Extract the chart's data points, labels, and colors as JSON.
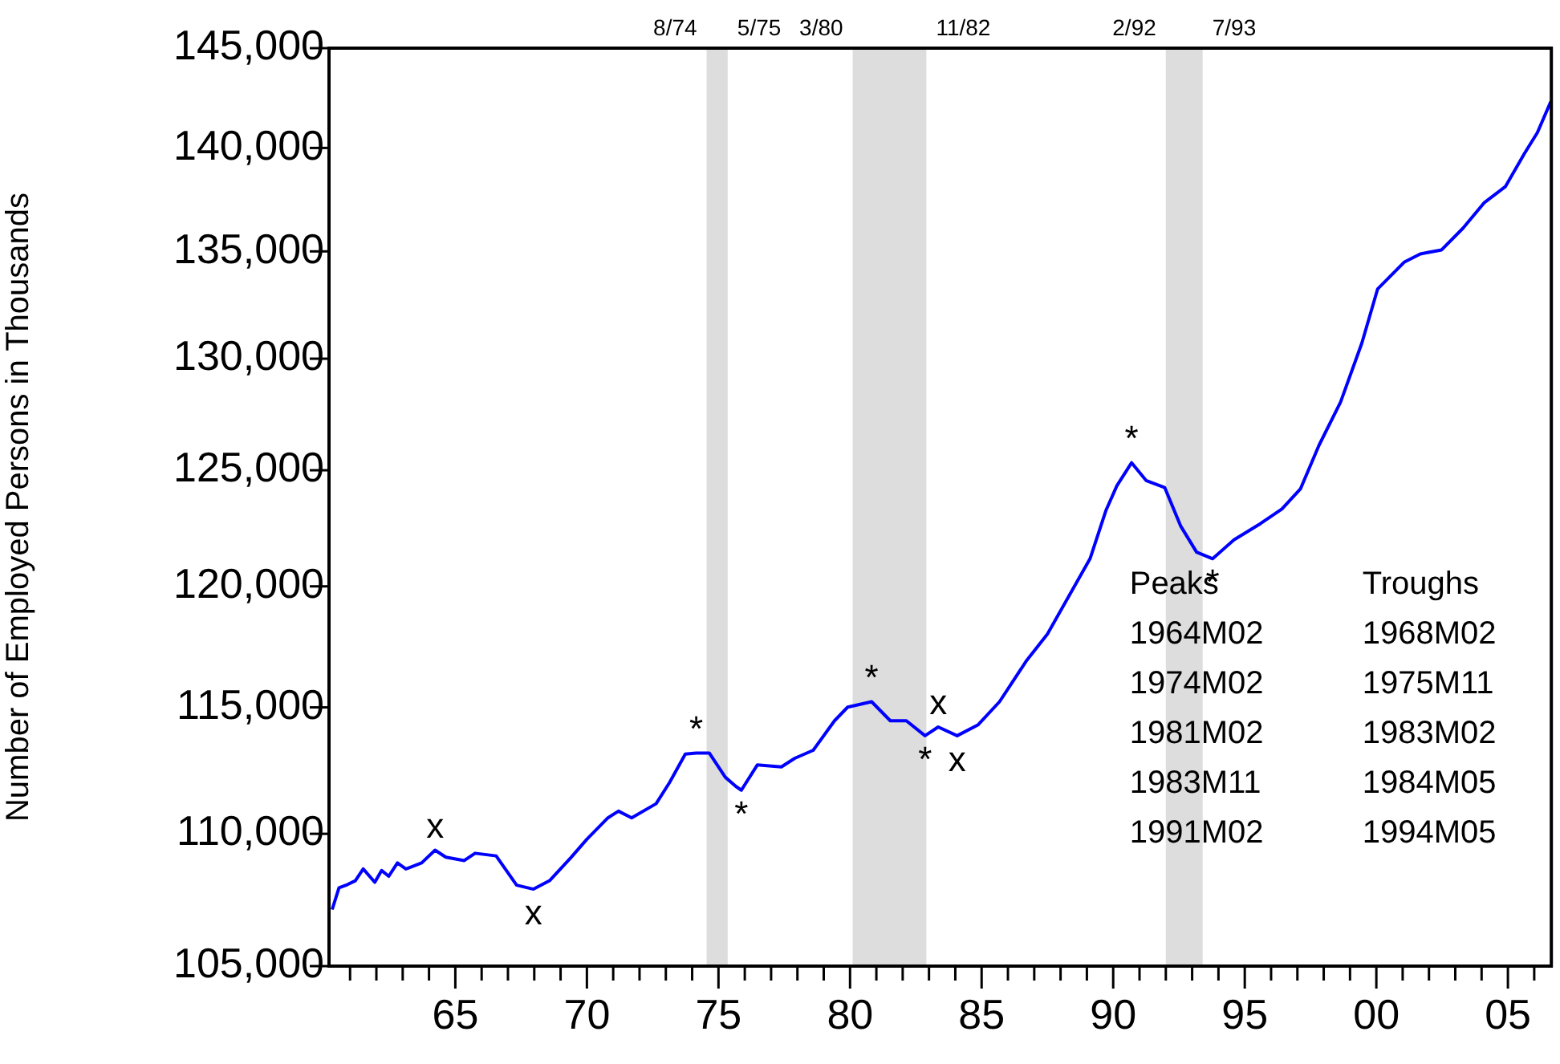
{
  "chart_data": {
    "type": "line",
    "ylabel": "Number of Employed Persons in Thousands",
    "log": "y",
    "grid": false,
    "legend": false,
    "marker": "none",
    "line_style": "solid",
    "xlim": [
      1960.2,
      2006.65
    ],
    "ylim": [
      105000,
      145000
    ],
    "yticks": [
      {
        "value": 105000,
        "label": "105,000"
      },
      {
        "value": 110000,
        "label": "110,000"
      },
      {
        "value": 115000,
        "label": "115,000"
      },
      {
        "value": 120000,
        "label": "120,000"
      },
      {
        "value": 125000,
        "label": "125,000"
      },
      {
        "value": 130000,
        "label": "130,000"
      },
      {
        "value": 135000,
        "label": "135,000"
      },
      {
        "value": 140000,
        "label": "140,000"
      },
      {
        "value": 145000,
        "label": "145,000"
      }
    ],
    "xticks": [
      {
        "value": 1961,
        "label": null
      },
      {
        "value": 1962,
        "label": null
      },
      {
        "value": 1963,
        "label": null
      },
      {
        "value": 1964,
        "label": null
      },
      {
        "value": 1965,
        "label": "65"
      },
      {
        "value": 1966,
        "label": null
      },
      {
        "value": 1967,
        "label": null
      },
      {
        "value": 1968,
        "label": null
      },
      {
        "value": 1969,
        "label": null
      },
      {
        "value": 1970,
        "label": "70"
      },
      {
        "value": 1971,
        "label": null
      },
      {
        "value": 1972,
        "label": null
      },
      {
        "value": 1973,
        "label": null
      },
      {
        "value": 1974,
        "label": null
      },
      {
        "value": 1975,
        "label": "75"
      },
      {
        "value": 1976,
        "label": null
      },
      {
        "value": 1977,
        "label": null
      },
      {
        "value": 1978,
        "label": null
      },
      {
        "value": 1979,
        "label": null
      },
      {
        "value": 1980,
        "label": "80"
      },
      {
        "value": 1981,
        "label": null
      },
      {
        "value": 1982,
        "label": null
      },
      {
        "value": 1983,
        "label": null
      },
      {
        "value": 1984,
        "label": null
      },
      {
        "value": 1985,
        "label": "85"
      },
      {
        "value": 1986,
        "label": null
      },
      {
        "value": 1987,
        "label": null
      },
      {
        "value": 1988,
        "label": null
      },
      {
        "value": 1989,
        "label": null
      },
      {
        "value": 1990,
        "label": "90"
      },
      {
        "value": 1991,
        "label": null
      },
      {
        "value": 1992,
        "label": null
      },
      {
        "value": 1993,
        "label": null
      },
      {
        "value": 1994,
        "label": null
      },
      {
        "value": 1995,
        "label": "95"
      },
      {
        "value": 1996,
        "label": null
      },
      {
        "value": 1997,
        "label": null
      },
      {
        "value": 1998,
        "label": null
      },
      {
        "value": 1999,
        "label": null
      },
      {
        "value": 2000,
        "label": "00"
      },
      {
        "value": 2001,
        "label": null
      },
      {
        "value": 2002,
        "label": null
      },
      {
        "value": 2003,
        "label": null
      },
      {
        "value": 2004,
        "label": null
      },
      {
        "value": 2005,
        "label": "05"
      },
      {
        "value": 2006,
        "label": null
      }
    ],
    "bands": [
      {
        "axis": "x",
        "from": 1974.55,
        "to": 1975.35,
        "color": "#dddddd"
      },
      {
        "axis": "x",
        "from": 1980.1,
        "to": 1982.9,
        "color": "#dddddd"
      },
      {
        "axis": "x",
        "from": 1992.0,
        "to": 1993.4,
        "color": "#dddddd"
      }
    ],
    "series": [
      {
        "color": "#0000ff",
        "x": [
          1960.32,
          1960.58,
          1960.89,
          1961.2,
          1961.5,
          1961.94,
          1962.2,
          1962.47,
          1962.8,
          1963.12,
          1963.72,
          1964.23,
          1964.64,
          1965.34,
          1965.75,
          1966.55,
          1967.33,
          1967.97,
          1968.58,
          1969.39,
          1970.0,
          1970.8,
          1971.2,
          1971.7,
          1972.63,
          1973.14,
          1973.74,
          1974.15,
          1974.65,
          1975.26,
          1975.66,
          1975.87,
          1976.48,
          1977.39,
          1977.9,
          1978.6,
          1979.41,
          1979.91,
          1980.82,
          1981.53,
          1982.14,
          1982.85,
          1983.35,
          1984.07,
          1984.87,
          1985.68,
          1986.69,
          1987.5,
          1988.31,
          1989.12,
          1989.73,
          1990.14,
          1990.7,
          1991.25,
          1991.96,
          1992.57,
          1993.17,
          1993.78,
          1994.59,
          1995.6,
          1996.41,
          1997.12,
          1997.82,
          1998.64,
          1999.45,
          2000.05,
          2001.07,
          2001.67,
          2002.48,
          2003.29,
          2004.1,
          2004.91,
          2005.62,
          2006.12,
          2006.63
        ],
        "values": [
          107110,
          107930,
          108050,
          108200,
          108650,
          108140,
          108590,
          108370,
          108880,
          108650,
          108880,
          109370,
          109100,
          108970,
          109250,
          109150,
          108030,
          107880,
          108200,
          109080,
          109790,
          110620,
          110880,
          110620,
          111170,
          112000,
          113130,
          113170,
          113170,
          112210,
          111850,
          111700,
          112700,
          112620,
          112960,
          113280,
          114460,
          115010,
          115230,
          114460,
          114460,
          113860,
          114210,
          113860,
          114300,
          115230,
          116880,
          118000,
          119580,
          121170,
          123260,
          124320,
          125330,
          124550,
          124240,
          122560,
          121450,
          121170,
          121980,
          122680,
          123310,
          124190,
          126100,
          128030,
          130720,
          133230,
          134500,
          134880,
          135070,
          136100,
          137330,
          138120,
          139710,
          140760,
          142300
        ]
      }
    ],
    "annotations": [
      {
        "text": "8/74",
        "x": 1974.55,
        "y": 145000
      },
      {
        "text": "5/75",
        "x": 1975.35,
        "y": 145000
      },
      {
        "text": "3/80",
        "x": 1980.1,
        "y": 145000
      },
      {
        "text": "11/82",
        "x": 1982.9,
        "y": 145000
      },
      {
        "text": "2/92",
        "x": 1992.0,
        "y": 145000
      },
      {
        "text": "7/93",
        "x": 1993.4,
        "y": 145000
      },
      {
        "text": "x",
        "x": 1964.23,
        "y": 109370
      },
      {
        "text": "x",
        "x": 1967.97,
        "y": 107880
      },
      {
        "text": "*",
        "x": 1974.15,
        "y": 113170
      },
      {
        "text": "*",
        "x": 1975.87,
        "y": 111700
      },
      {
        "text": "*",
        "x": 1980.82,
        "y": 115230
      },
      {
        "text": "*",
        "x": 1982.85,
        "y": 113860
      },
      {
        "text": "x",
        "x": 1983.35,
        "y": 114210
      },
      {
        "text": "x",
        "x": 1984.07,
        "y": 113860
      },
      {
        "text": "*",
        "x": 1990.7,
        "y": 125330
      },
      {
        "text": "*",
        "x": 1993.78,
        "y": 121170
      },
      "Peaks\n1964M02\n1974M02\n1981M02\n1983M11\n1991M02",
      "Troughs\n1968M02\n1975M11\n1983M02\n1984M05\n1994M05"
    ]
  }
}
